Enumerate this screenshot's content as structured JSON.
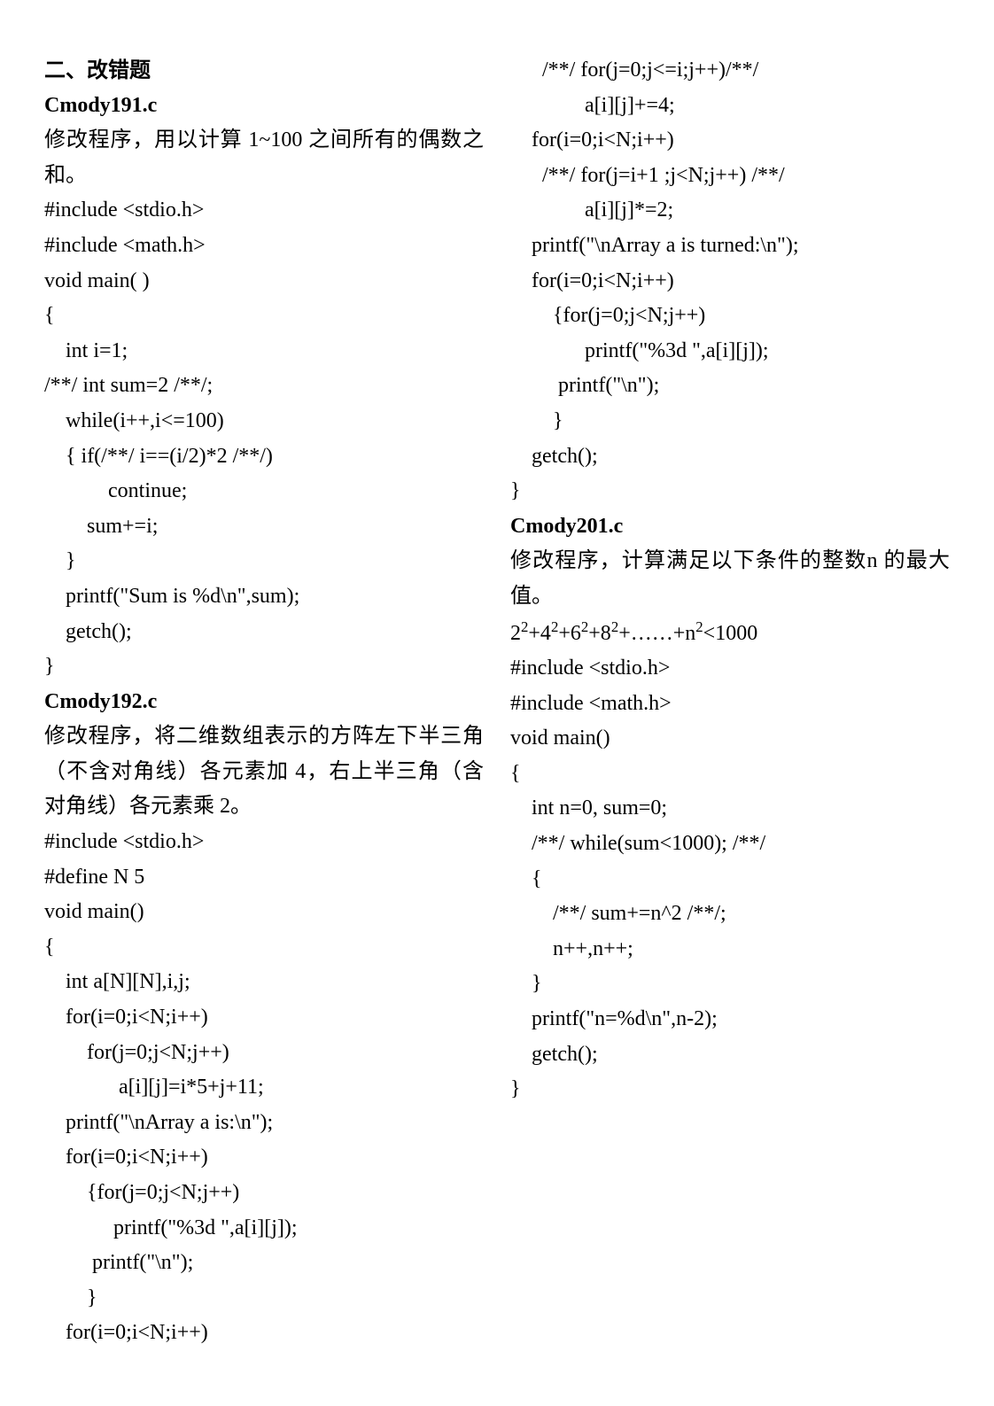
{
  "sectionTitle": "二、改错题",
  "blocks": [
    {
      "title": "Cmody191.c",
      "desc": "修改程序，用以计算 1~100 之间所有的偶数之和。",
      "code": [
        "#include <stdio.h>",
        "#include <math.h>",
        "void main( )",
        "{",
        "    int i=1;",
        "/**/ int sum=2 /**/;",
        "    while(i++,i<=100)",
        "    { if(/**/ i==(i/2)*2 /**/)",
        "            continue;",
        "        sum+=i;",
        "    }",
        "    printf(\"Sum is %d\\n\",sum);",
        "    getch();",
        "}"
      ]
    },
    {
      "title": "Cmody192.c",
      "desc": "修改程序，将二维数组表示的方阵左下半三角（不含对角线）各元素加 4，右上半三角（含对角线）各元素乘 2。",
      "code": [
        "#include <stdio.h>",
        "#define N 5",
        "void main()",
        "{",
        "    int a[N][N],i,j;",
        "    for(i=0;i<N;i++)",
        "        for(j=0;j<N;j++)",
        "              a[i][j]=i*5+j+11;",
        "    printf(\"\\nArray a is:\\n\");",
        "    for(i=0;i<N;i++)",
        "        {for(j=0;j<N;j++)",
        "             printf(\"%3d \",a[i][j]);",
        "         printf(\"\\n\");",
        "        }",
        "    for(i=0;i<N;i++)",
        "      /**/ for(j=0;j<=i;j++)/**/",
        "              a[i][j]+=4;",
        "    for(i=0;i<N;i++)",
        "      /**/ for(j=i+1 ;j<N;j++) /**/",
        "              a[i][j]*=2;",
        "    printf(\"\\nArray a is turned:\\n\");",
        "    for(i=0;i<N;i++)",
        "        {for(j=0;j<N;j++)",
        "              printf(\"%3d \",a[i][j]);",
        "         printf(\"\\n\");",
        "        }",
        "    getch();",
        "}"
      ]
    },
    {
      "title": "Cmody201.c",
      "desc": "修改程序，计算满足以下条件的整数n 的最大值。",
      "formula": "2²+4²+6²+8²+……+n²<1000",
      "code": [
        "#include <stdio.h>",
        "#include <math.h>",
        "void main()",
        "{",
        "    int n=0, sum=0;",
        "    /**/ while(sum<1000); /**/",
        "    {",
        "        /**/ sum+=n^2 /**/;",
        "        n++,n++;",
        "    }",
        "    printf(\"n=%d\\n\",n-2);",
        "    getch();",
        "}"
      ]
    }
  ]
}
